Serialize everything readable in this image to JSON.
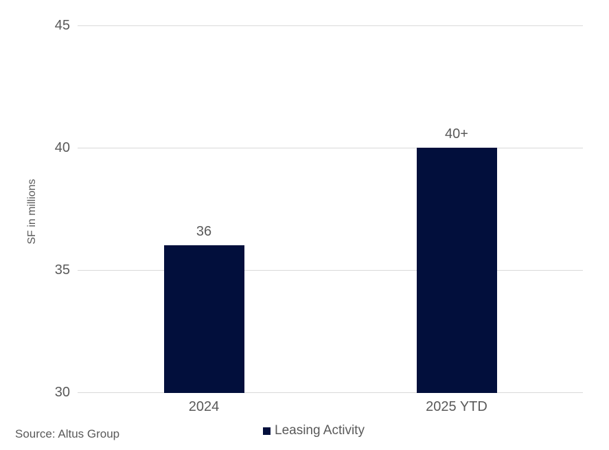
{
  "chart_data": {
    "type": "bar",
    "title": "",
    "categories": [
      "2024",
      "2025 YTD"
    ],
    "series": [
      {
        "name": "Leasing Activity",
        "values": [
          36,
          40
        ]
      }
    ],
    "data_labels": [
      "36",
      "40+"
    ],
    "xlabel": "",
    "ylabel": "SF in millions",
    "ylim": [
      30,
      45
    ],
    "yticks": [
      30,
      35,
      40,
      45
    ],
    "ytick_labels": [
      "30",
      "35",
      "40",
      "45"
    ],
    "grid": "horizontal-only",
    "legend_position": "bottom-center",
    "bar_color": "#020f3c",
    "gridline_color": "#d9d9d9",
    "text_color": "#595959",
    "background_color": "#ffffff"
  },
  "y_axis": {
    "title": "SF in millions"
  },
  "legend": {
    "label": "Leasing Activity"
  },
  "source": {
    "text": "Source: Altus Group"
  }
}
